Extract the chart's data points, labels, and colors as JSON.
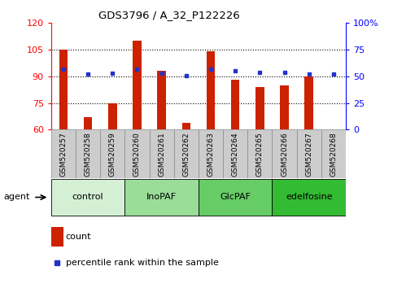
{
  "title": "GDS3796 / A_32_P122226",
  "samples": [
    "GSM520257",
    "GSM520258",
    "GSM520259",
    "GSM520260",
    "GSM520261",
    "GSM520262",
    "GSM520263",
    "GSM520264",
    "GSM520265",
    "GSM520266",
    "GSM520267",
    "GSM520268"
  ],
  "count_values": [
    105,
    67,
    75,
    110,
    93,
    64,
    104,
    88,
    84,
    85,
    90,
    60
  ],
  "percentile_values": [
    57,
    52,
    53,
    57,
    53,
    51,
    57,
    55,
    54,
    54,
    52,
    52
  ],
  "groups": [
    {
      "label": "control",
      "indices": [
        0,
        1,
        2
      ],
      "color": "#d4f0d4"
    },
    {
      "label": "InoPAF",
      "indices": [
        3,
        4,
        5
      ],
      "color": "#99dd99"
    },
    {
      "label": "GlcPAF",
      "indices": [
        6,
        7,
        8
      ],
      "color": "#66cc66"
    },
    {
      "label": "edelfosine",
      "indices": [
        9,
        10,
        11
      ],
      "color": "#33bb33"
    }
  ],
  "bar_color": "#cc2200",
  "dot_color": "#2233cc",
  "ylim_left": [
    60,
    120
  ],
  "ylim_right": [
    0,
    100
  ],
  "yticks_left": [
    60,
    75,
    90,
    105,
    120
  ],
  "yticks_right": [
    0,
    25,
    50,
    75,
    100
  ],
  "ytick_labels_right": [
    "0",
    "25",
    "50",
    "75",
    "100%"
  ],
  "hlines": [
    75,
    90,
    105
  ],
  "legend_count_label": "count",
  "legend_pct_label": "percentile rank within the sample",
  "agent_label": "agent",
  "bar_color_legend": "#cc2200",
  "dot_color_legend": "#2233cc",
  "sample_box_color": "#cccccc",
  "sample_box_edge": "#888888",
  "bar_width": 0.35
}
